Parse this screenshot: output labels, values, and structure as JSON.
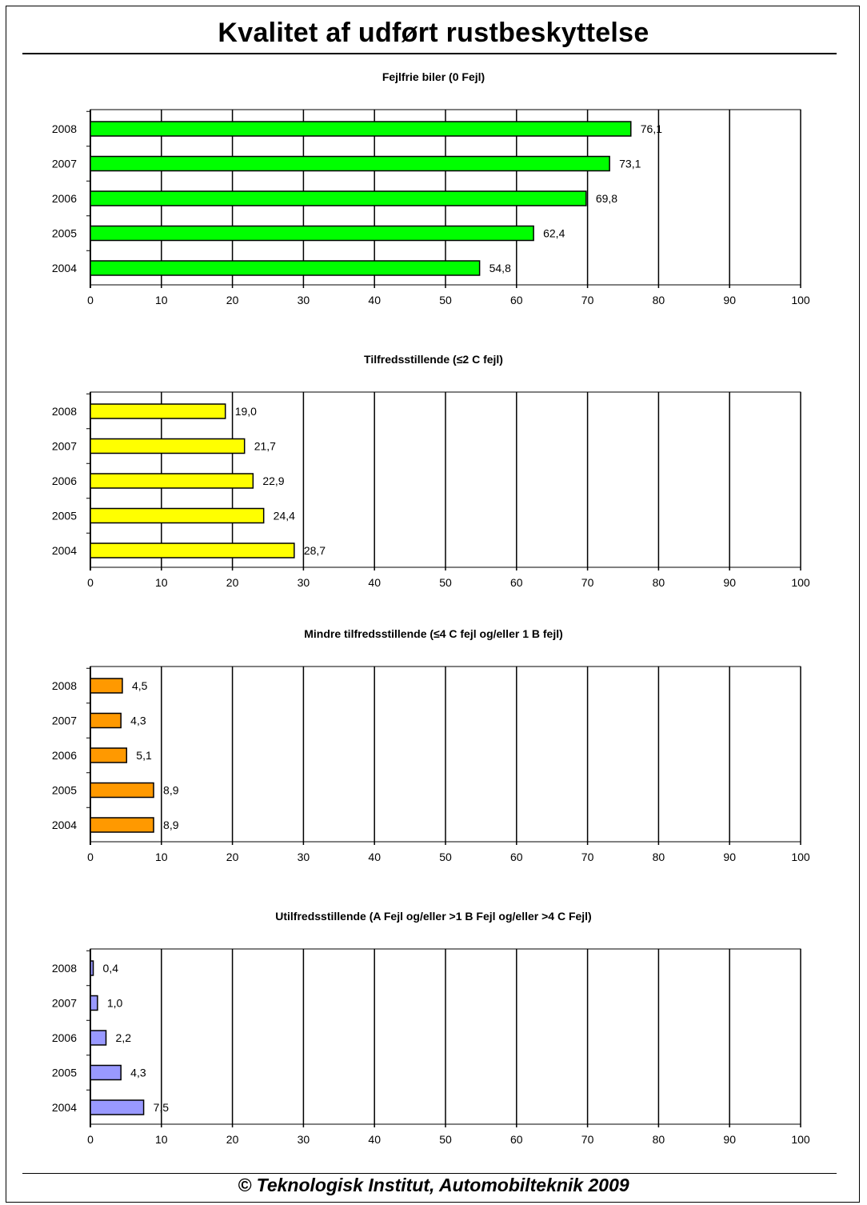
{
  "page": {
    "title": "Kvalitet af udført rustbeskyttelse",
    "footer": "© Teknologisk Institut, Automobilteknik 2009"
  },
  "chart_data": [
    {
      "type": "bar",
      "orientation": "horizontal",
      "title": "Fejlfrie biler (0 Fejl)",
      "categories": [
        "2008",
        "2007",
        "2006",
        "2005",
        "2004"
      ],
      "values": [
        76.1,
        73.1,
        69.8,
        62.4,
        54.8
      ],
      "labels": [
        "76,1",
        "73,1",
        "69,8",
        "62,4",
        "54,8"
      ],
      "xlim": [
        0,
        100
      ],
      "xticks": [
        "0",
        "10",
        "20",
        "30",
        "40",
        "50",
        "60",
        "70",
        "80",
        "90",
        "100"
      ],
      "color": "#00ff00",
      "grid": "vertical"
    },
    {
      "type": "bar",
      "orientation": "horizontal",
      "title": "Tilfredsstillende (≤2 C fejl)",
      "categories": [
        "2008",
        "2007",
        "2006",
        "2005",
        "2004"
      ],
      "values": [
        19.0,
        21.7,
        22.9,
        24.4,
        28.7
      ],
      "labels": [
        "19,0",
        "21,7",
        "22,9",
        "24,4",
        "28,7"
      ],
      "xlim": [
        0,
        100
      ],
      "xticks": [
        "0",
        "10",
        "20",
        "30",
        "40",
        "50",
        "60",
        "70",
        "80",
        "90",
        "100"
      ],
      "color": "#ffff00",
      "grid": "vertical"
    },
    {
      "type": "bar",
      "orientation": "horizontal",
      "title": "Mindre tilfredsstillende (≤4 C fejl og/eller 1 B fejl)",
      "categories": [
        "2008",
        "2007",
        "2006",
        "2005",
        "2004"
      ],
      "values": [
        4.5,
        4.3,
        5.1,
        8.9,
        8.9
      ],
      "labels": [
        "4,5",
        "4,3",
        "5,1",
        "8,9",
        "8,9"
      ],
      "xlim": [
        0,
        100
      ],
      "xticks": [
        "0",
        "10",
        "20",
        "30",
        "40",
        "50",
        "60",
        "70",
        "80",
        "90",
        "100"
      ],
      "color": "#ff9900",
      "grid": "vertical"
    },
    {
      "type": "bar",
      "orientation": "horizontal",
      "title": "Utilfredsstillende (A Fejl og/eller >1 B Fejl og/eller >4 C Fejl)",
      "categories": [
        "2008",
        "2007",
        "2006",
        "2005",
        "2004"
      ],
      "values": [
        0.4,
        1.0,
        2.2,
        4.3,
        7.5
      ],
      "labels": [
        "0,4",
        "1,0",
        "2,2",
        "4,3",
        "7,5"
      ],
      "xlim": [
        0,
        100
      ],
      "xticks": [
        "0",
        "10",
        "20",
        "30",
        "40",
        "50",
        "60",
        "70",
        "80",
        "90",
        "100"
      ],
      "color": "#9999ff",
      "grid": "vertical"
    }
  ]
}
